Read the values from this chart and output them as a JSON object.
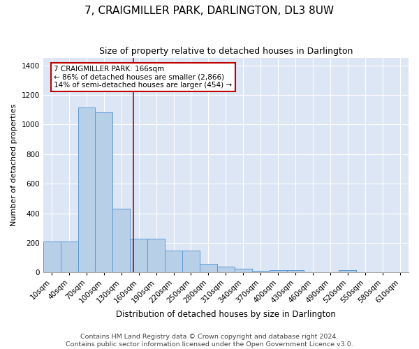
{
  "title": "7, CRAIGMILLER PARK, DARLINGTON, DL3 8UW",
  "subtitle": "Size of property relative to detached houses in Darlington",
  "xlabel": "Distribution of detached houses by size in Darlington",
  "ylabel": "Number of detached properties",
  "footer_line1": "Contains HM Land Registry data © Crown copyright and database right 2024.",
  "footer_line2": "Contains public sector information licensed under the Open Government Licence v3.0.",
  "bin_left_edges": [
    10,
    40,
    70,
    100,
    130,
    160,
    190,
    220,
    250,
    280,
    310,
    340,
    370,
    400,
    430,
    460,
    490,
    520,
    550,
    580,
    610
  ],
  "bar_heights": [
    207,
    207,
    1113,
    1083,
    430,
    230,
    230,
    147,
    147,
    57,
    40,
    25,
    10,
    15,
    15,
    0,
    0,
    15,
    0,
    0,
    0
  ],
  "bar_color": "#b8cfe8",
  "bar_edgecolor": "#5b9bd5",
  "property_size": 166,
  "vline_color": "#c00000",
  "annotation_line1": "7 CRAIGMILLER PARK: 166sqm",
  "annotation_line2": "← 86% of detached houses are smaller (2,866)",
  "annotation_line3": "14% of semi-detached houses are larger (454) →",
  "annotation_box_edgecolor": "#c00000",
  "ylim": [
    0,
    1450
  ],
  "yticks": [
    0,
    200,
    400,
    600,
    800,
    1000,
    1200,
    1400
  ],
  "plot_bg_color": "#dce6f5",
  "title_fontsize": 11,
  "subtitle_fontsize": 9,
  "xlabel_fontsize": 8.5,
  "ylabel_fontsize": 8,
  "tick_fontsize": 7.5,
  "footer_fontsize": 6.8,
  "annotation_fontsize": 7.5
}
